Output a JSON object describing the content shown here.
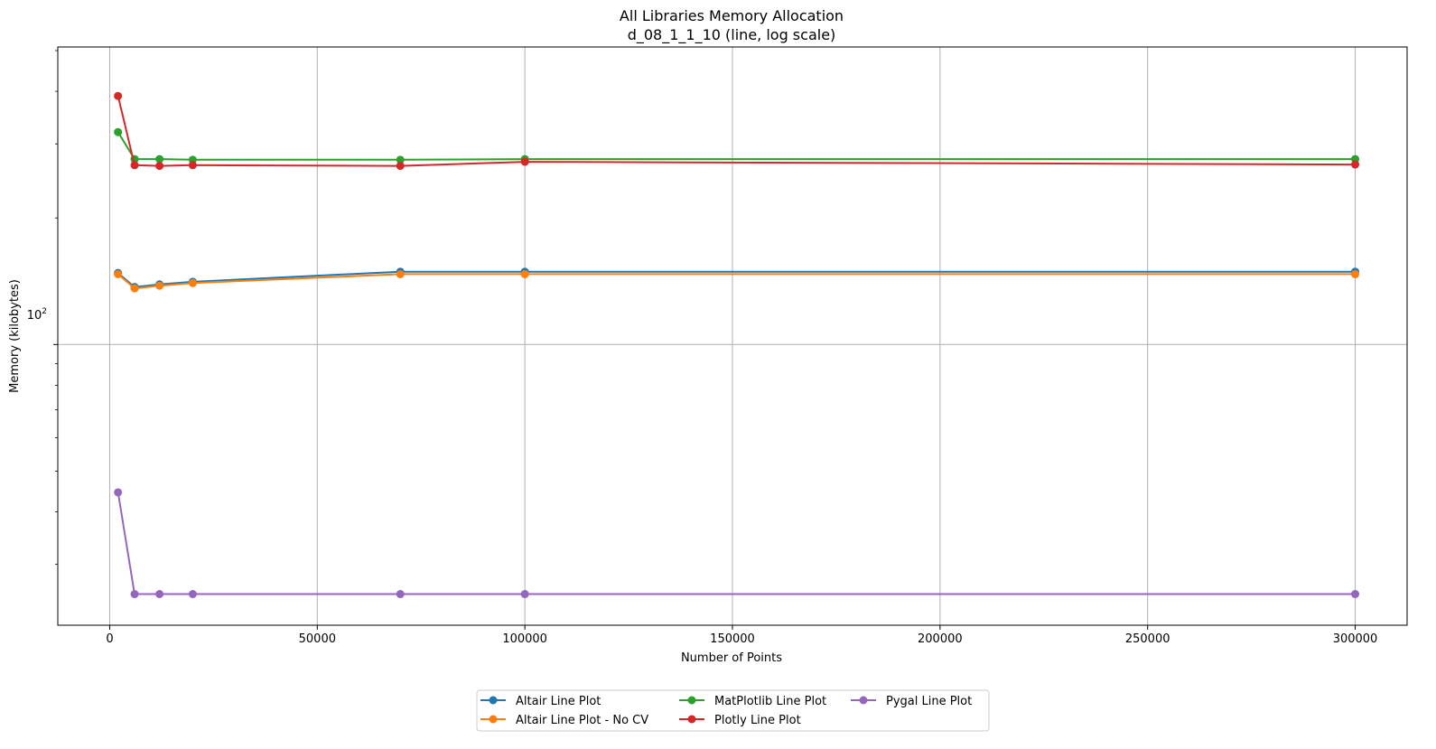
{
  "chart_data": {
    "type": "line",
    "title": "All Libraries Memory Allocation",
    "subtitle": "d_08_1_1_10 (line, log scale)",
    "xlabel": "Number of Points",
    "ylabel": "Memory (kilobytes)",
    "yscale": "log",
    "xlim": [
      -12500,
      312500
    ],
    "ylim": [
      21.5,
      510
    ],
    "grid": true,
    "legend_position": "bottom-center",
    "x_ticks": [
      0,
      50000,
      100000,
      150000,
      200000,
      250000,
      300000
    ],
    "x_tick_labels": [
      "0",
      "50000",
      "100000",
      "150000",
      "200000",
      "250000",
      "300000"
    ],
    "y_ticks": [
      100
    ],
    "y_tick_base": "10",
    "y_tick_exp": "2",
    "x": [
      2000,
      6000,
      12000,
      20000,
      70000,
      100000,
      300000
    ],
    "series": [
      {
        "name": "Altair Line Plot",
        "color": "#1f77b4",
        "values": [
          148,
          137,
          139,
          141,
          149,
          149,
          149
        ]
      },
      {
        "name": "Altair Line Plot - No CV",
        "color": "#ff7f0e",
        "values": [
          147,
          136,
          138,
          140,
          147,
          147,
          147
        ]
      },
      {
        "name": "MatPlotlib Line Plot",
        "color": "#2ca02c",
        "values": [
          320,
          276,
          276,
          275,
          275,
          276,
          276
        ]
      },
      {
        "name": "Plotly Line Plot",
        "color": "#d62728",
        "values": [
          390,
          267,
          266,
          267,
          266,
          272,
          268
        ]
      },
      {
        "name": "Pygal Line Plot",
        "color": "#9467bd",
        "values": [
          44.5,
          25.5,
          25.5,
          25.5,
          25.5,
          25.5,
          25.5
        ]
      }
    ]
  }
}
